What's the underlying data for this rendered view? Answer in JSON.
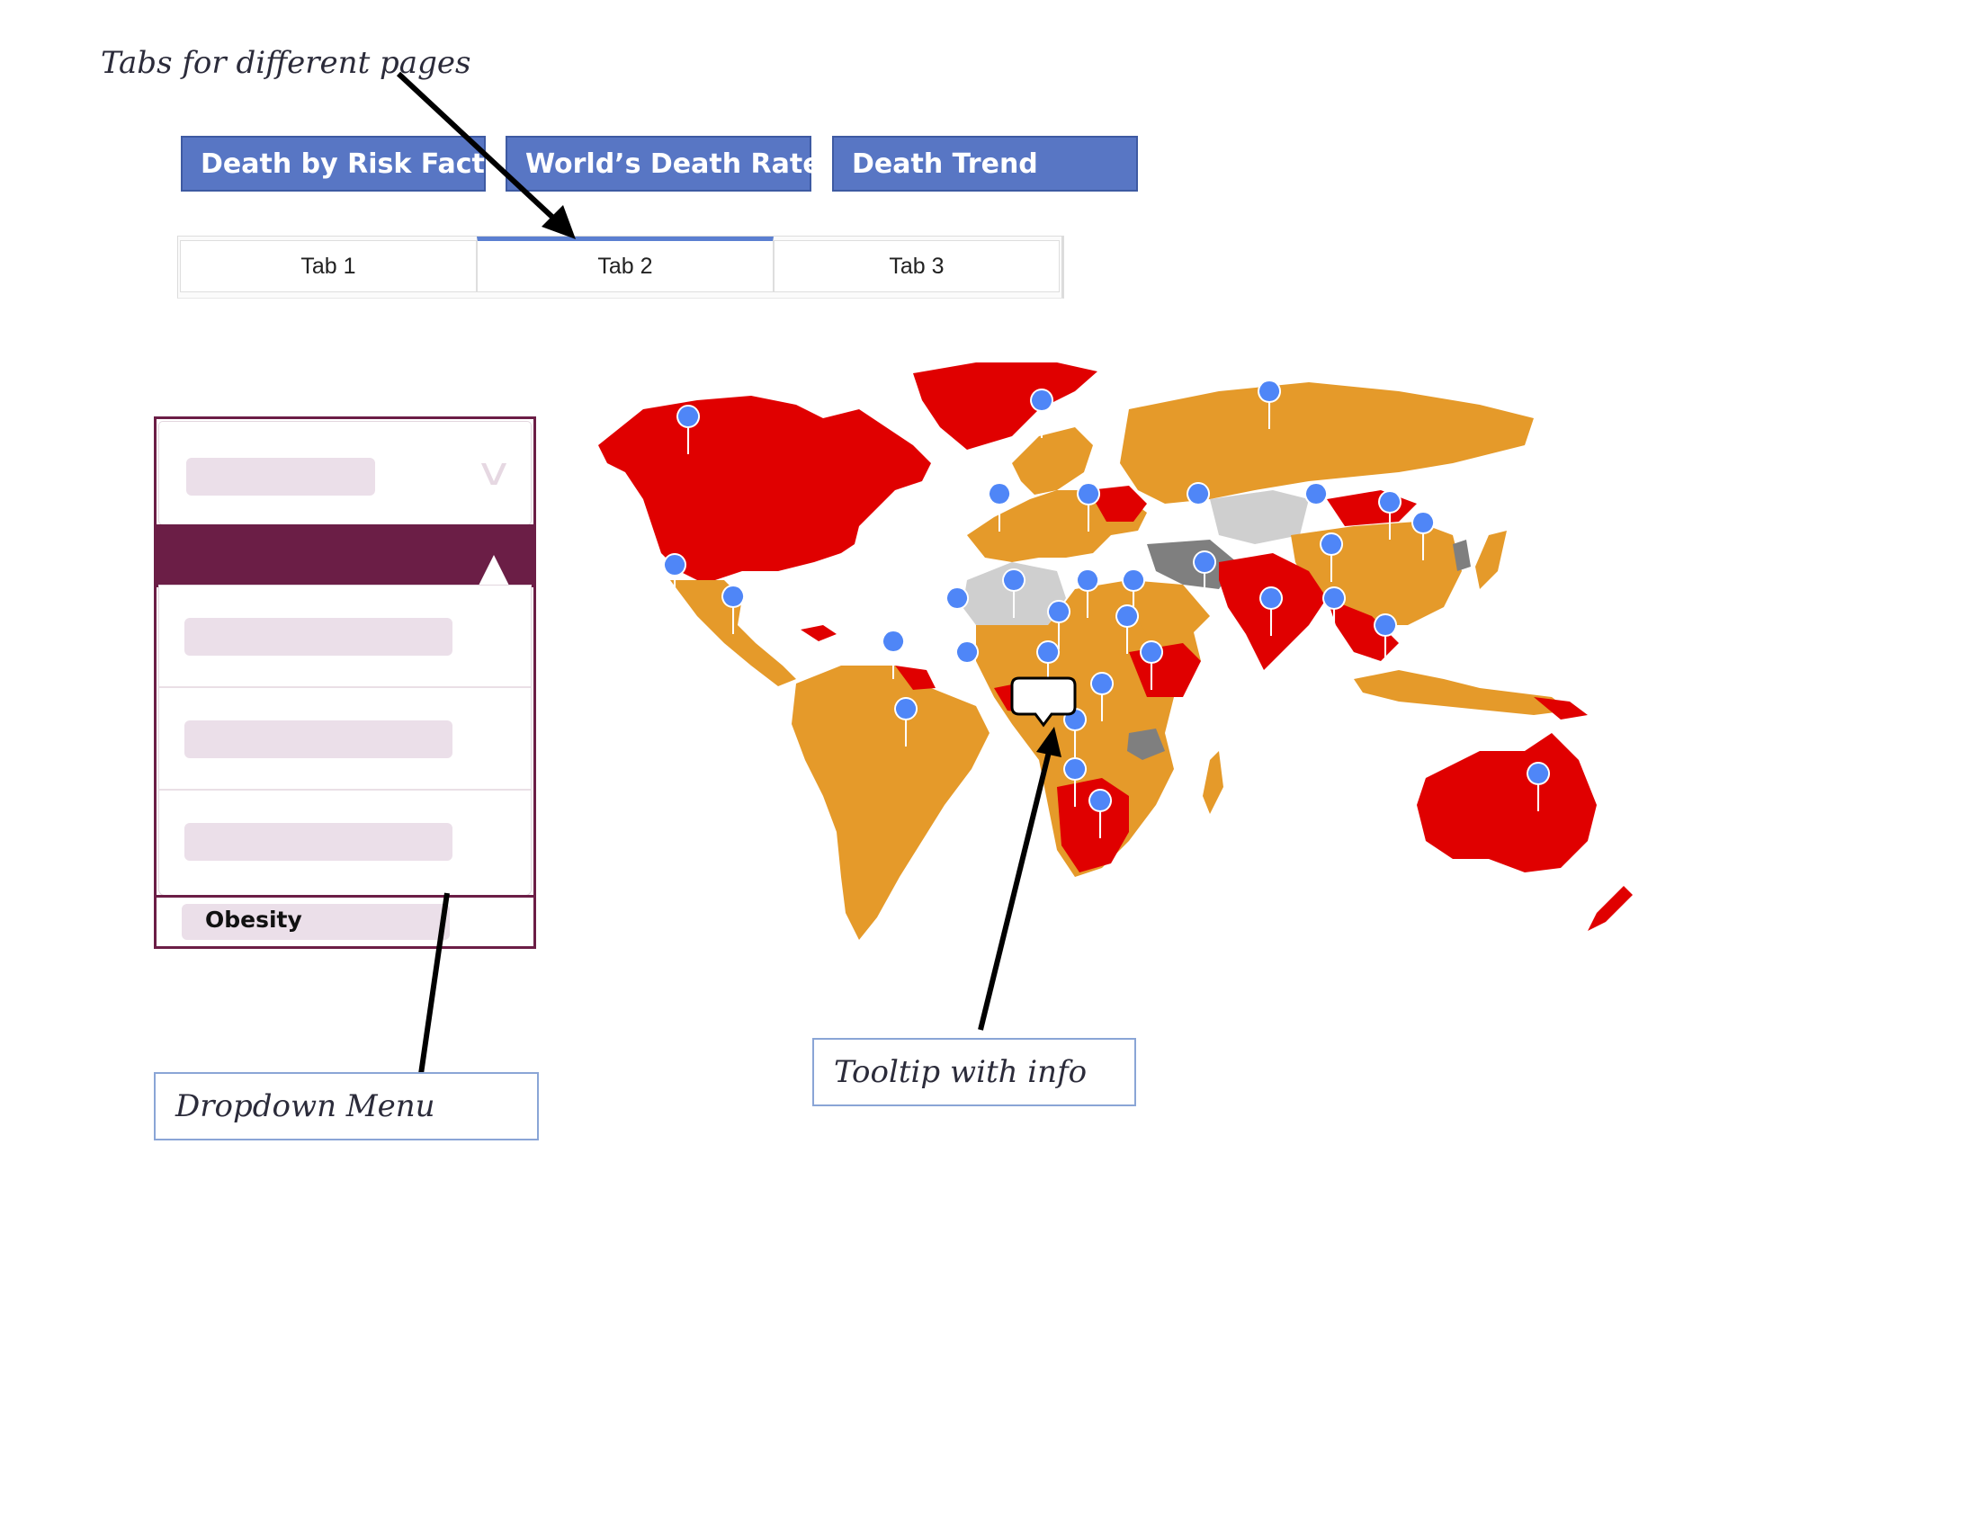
{
  "annotations": {
    "tabs_note": "Tabs for different pages",
    "dropdown_note": "Dropdown Menu",
    "tooltip_note": "Tooltip with info"
  },
  "page_tabs": [
    {
      "label": "Death by Risk Factor"
    },
    {
      "label": "World’s Death Rate"
    },
    {
      "label": "Death Trend"
    }
  ],
  "mini_tabs": {
    "items": [
      {
        "label": "Tab 1"
      },
      {
        "label": "Tab 2"
      },
      {
        "label": "Tab 3"
      }
    ],
    "active": "Tab 2"
  },
  "dropdown": {
    "selected": "Obesity",
    "chevron_icon": "chevron-down-icon"
  },
  "map": {
    "colors": {
      "high": "#e00000",
      "medium": "#e59a2a",
      "no_data_light": "#cfcfcf",
      "no_data_dark": "#7f7f7f",
      "marker": "#4f86f7"
    },
    "marker_icon": "map-pin-icon"
  },
  "theme": {
    "tab_blue": "#5876c4",
    "dropdown_purple": "#6b1e46"
  }
}
